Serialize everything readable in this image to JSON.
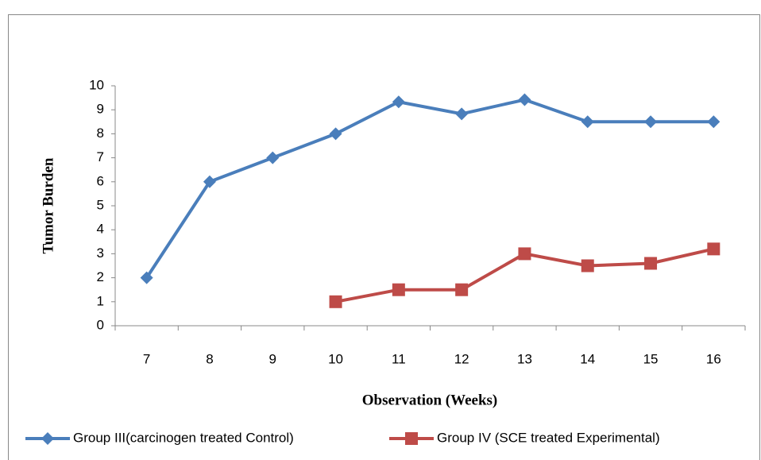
{
  "chart_data": {
    "type": "line",
    "y_label": "Tumor Burden",
    "x_label": "Observation (Weeks)",
    "categories": [
      "7",
      "8",
      "9",
      "10",
      "11",
      "12",
      "13",
      "14",
      "15",
      "16"
    ],
    "series": [
      {
        "name": "Group III(carcinogen treated Control)",
        "color": "#4a7ebb",
        "marker": "diamond",
        "values": [
          2,
          6,
          7,
          8,
          9.33,
          8.83,
          9.42,
          8.5,
          8.5,
          8.5
        ]
      },
      {
        "name": "Group IV (SCE treated Experimental)",
        "color": "#be4b48",
        "marker": "square",
        "values": [
          null,
          null,
          null,
          1,
          1.5,
          1.5,
          3,
          2.5,
          2.6,
          3.2
        ]
      }
    ],
    "ylim": [
      0,
      10
    ],
    "yticks": [
      0,
      1,
      2,
      3,
      4,
      5,
      6,
      7,
      8,
      9,
      10
    ],
    "legend": "bottom"
  }
}
